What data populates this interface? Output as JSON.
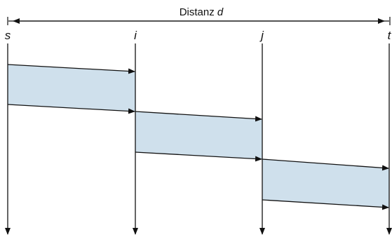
{
  "diagram": {
    "distance_label": "Distanz",
    "distance_var": "d",
    "nodes": [
      "s",
      "i",
      "j",
      "t"
    ],
    "colors": {
      "line": "#111111",
      "band_fill": "#cfe0ec"
    }
  }
}
